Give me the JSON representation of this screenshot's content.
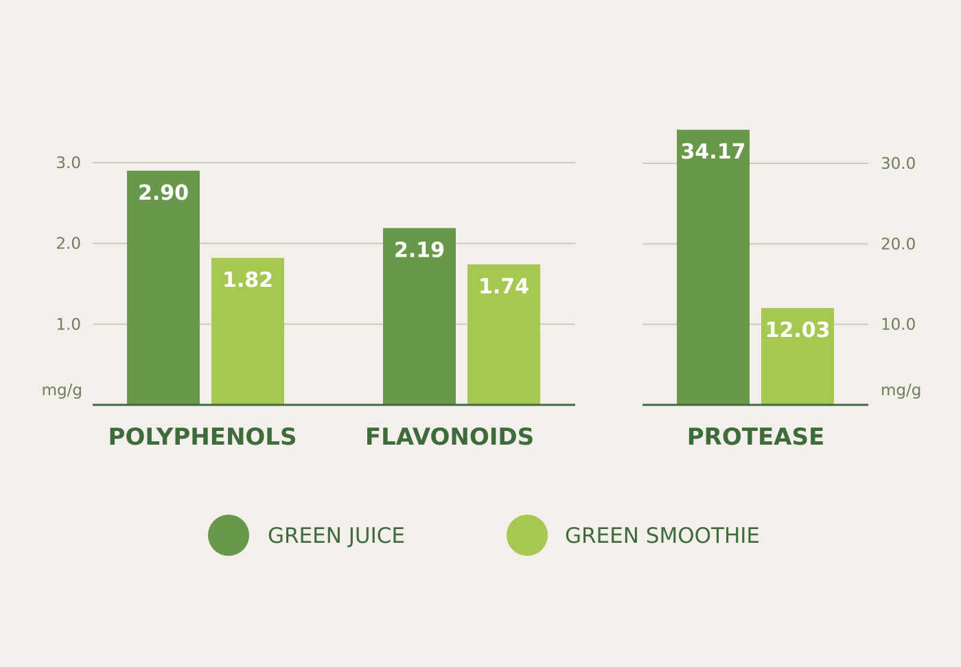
{
  "chart_data": [
    {
      "type": "bar",
      "categories": [
        "POLYPHENOLS",
        "FLAVONOIDS"
      ],
      "series": [
        {
          "name": "GREEN JUICE",
          "values": [
            2.9,
            2.19
          ],
          "labels": [
            "2.90",
            "2.19"
          ]
        },
        {
          "name": "GREEN SMOOTHIE",
          "values": [
            1.82,
            1.74
          ],
          "labels": [
            "1.82",
            "1.74"
          ]
        }
      ],
      "ylabel": "mg/g",
      "yticks": [
        "1.0",
        "2.0",
        "3.0"
      ],
      "ytick_values": [
        1.0,
        2.0,
        3.0
      ],
      "ylim": [
        0,
        3.0
      ],
      "axis_side": "left",
      "grid": true
    },
    {
      "type": "bar",
      "categories": [
        "PROTEASE"
      ],
      "series": [
        {
          "name": "GREEN JUICE",
          "values": [
            34.17
          ],
          "labels": [
            "34.17"
          ]
        },
        {
          "name": "GREEN SMOOTHIE",
          "values": [
            12.03
          ],
          "labels": [
            "12.03"
          ]
        }
      ],
      "ylabel": "mg/g",
      "yticks": [
        "10.0",
        "20.0",
        "30.0"
      ],
      "ytick_values": [
        10.0,
        20.0,
        30.0
      ],
      "ylim": [
        0,
        30.0
      ],
      "axis_side": "right",
      "grid": true
    }
  ],
  "legend": {
    "placement": "bottom",
    "items": [
      {
        "label": "GREEN JUICE",
        "color": "#6a984b"
      },
      {
        "label": "GREEN SMOOTHIE",
        "color": "#a6c853"
      }
    ]
  },
  "colors": {
    "background": "#f4efea",
    "juice": "#6a984b",
    "smoothie": "#a6c853",
    "grid": "#c9ccc0",
    "baseline": "#3d6b3c",
    "tick_text": "#6b7f5e",
    "category_text": "#3d6b3c"
  }
}
